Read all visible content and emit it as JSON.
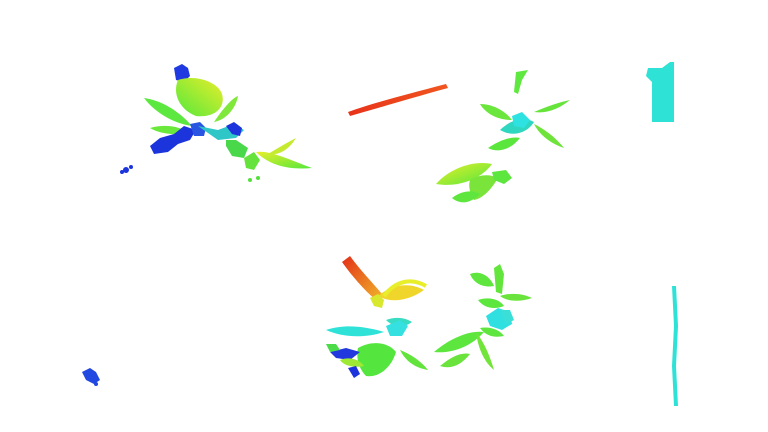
{
  "image": {
    "type": "pseudo-color depth segmentation render of plant point clouds",
    "background": "#ffffff",
    "colormap": [
      "#1a2ed6",
      "#2fe0e6",
      "#54e83c",
      "#e8ee2a",
      "#f1a526",
      "#ea3a18"
    ],
    "objects": [
      {
        "name": "plant-top-left"
      },
      {
        "name": "stem-top-center"
      },
      {
        "name": "plant-top-right"
      },
      {
        "name": "pole-top-right"
      },
      {
        "name": "fragment-bottom-left"
      },
      {
        "name": "plant-bottom-center-left"
      },
      {
        "name": "plant-bottom-center-right"
      },
      {
        "name": "pole-bottom-right"
      }
    ]
  }
}
